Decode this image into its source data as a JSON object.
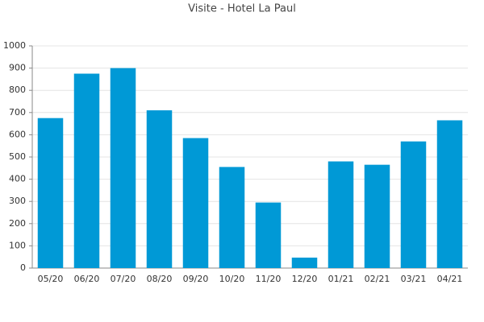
{
  "chart_data": {
    "type": "bar",
    "title": "Visite - Hotel La Paul",
    "categories": [
      "05/20",
      "06/20",
      "07/20",
      "08/20",
      "09/20",
      "10/20",
      "11/20",
      "12/20",
      "01/21",
      "02/21",
      "03/21",
      "04/21"
    ],
    "values": [
      675,
      875,
      900,
      710,
      585,
      455,
      295,
      47,
      480,
      465,
      570,
      665
    ],
    "color": "#0099d6",
    "ylim": [
      0,
      1000
    ],
    "yticks": [
      0,
      100,
      200,
      300,
      400,
      500,
      600,
      700,
      800,
      900,
      1000
    ],
    "grid": true
  }
}
